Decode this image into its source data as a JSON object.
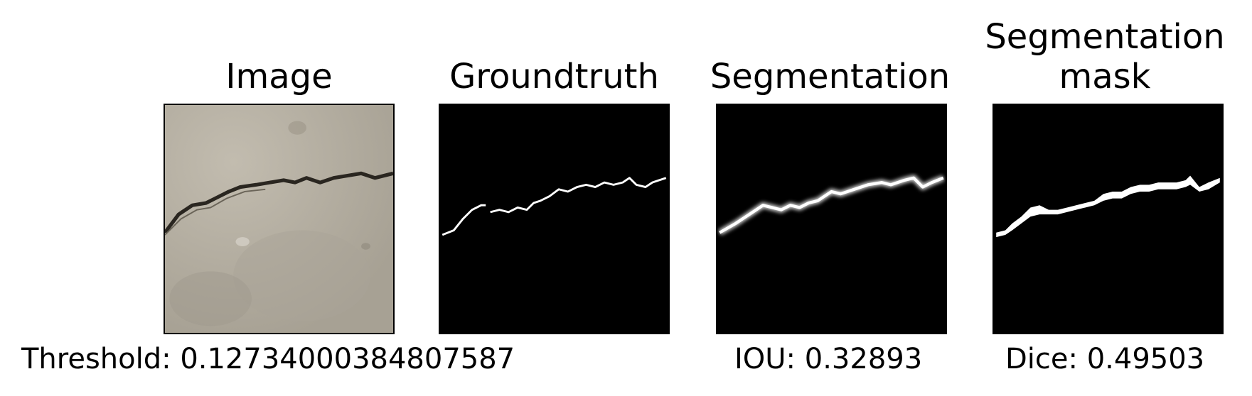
{
  "panels": [
    {
      "id": "image",
      "title": "Image"
    },
    {
      "id": "groundtruth",
      "title": "Groundtruth"
    },
    {
      "id": "segmentation",
      "title": "Segmentation"
    },
    {
      "id": "segmentation_mask",
      "title_line1": "Segmentation",
      "title_line2": "mask"
    }
  ],
  "captions": {
    "threshold": "Threshold: 0.12734000384807587",
    "iou": "IOU: 0.32893",
    "dice": "Dice: 0.49503"
  },
  "colors": {
    "background": "#ffffff",
    "mask_background": "#000000",
    "mask_foreground": "#ffffff",
    "concrete": "#b6b0a3"
  }
}
